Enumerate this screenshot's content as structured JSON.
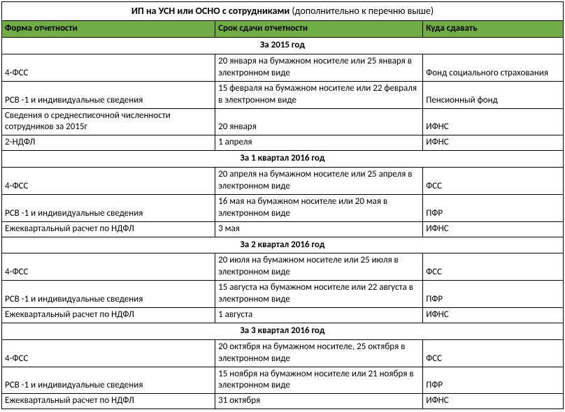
{
  "title_main": "ИП на УСН или ОСНО с сотрудниками",
  "title_sub": " (дополнительно к перечню выше)",
  "header_bg": "#70ad47",
  "headers": {
    "col1": "Форма отчетности",
    "col2": "Срок сдачи отчетности",
    "col3": "Куда сдавать"
  },
  "sections": [
    {
      "label": "За 2015 год",
      "rows": [
        {
          "c1": "4-ФСС",
          "c2": "20 января на бумажном носителе или 25 января в электронном виде",
          "c3": "Фонд социального страхования"
        },
        {
          "c1": " РСВ -1 и индивидуальные сведения",
          "c2": "15 февраля на бумажном носителе или 22 февраля в электронном виде",
          "c3": "Пенсионный фонд"
        },
        {
          "c1": "Сведения о среднесписочной численности сотрудников за 2015г",
          "c2": "20 января",
          "c3": "ИФНС"
        },
        {
          "c1": "2-НДФЛ",
          "c2": "1 апреля",
          "c3": "ИФНС"
        }
      ]
    },
    {
      "label": "За 1 квартал 2016 год",
      "rows": [
        {
          "c1": "4-ФСС",
          "c2": "20 апреля на бумажном носителе или 25 апреля в электронном виде",
          "c3": "ФСС"
        },
        {
          "c1": " РСВ -1 и индивидуальные сведения",
          "c2": "16 мая на бумажном носителе или 20 мая в электронном виде",
          "c3": "ПФР"
        },
        {
          "c1": "Ежеквартальный расчет по НДФЛ",
          "c2": "3 мая",
          "c3": "ИФНС"
        }
      ]
    },
    {
      "label": "За 2 квартал 2016 год",
      "rows": [
        {
          "c1": "4-ФСС",
          "c2": "20 июля на бумажном носителе или 25 июля в электронном виде",
          "c3": "ФСС"
        },
        {
          "c1": " РСВ -1 и индивидуальные сведения",
          "c2": "15 августа на бумажном носителе или 22 августа в электронном виде",
          "c3": "ПФР"
        },
        {
          "c1": "Ежеквартальный расчет по НДФЛ",
          "c2": "1 августа",
          "c3": "ИФНС"
        }
      ]
    },
    {
      "label": "За 3 квартал 2016 год",
      "rows": [
        {
          "c1": "4-ФСС",
          "c2": "20 октября на бумажном носителе, 25 октября в электронном виде",
          "c3": "ФСС"
        },
        {
          "c1": " РСВ -1 и индивидуальные сведения",
          "c2": "15 ноября на бумажном носителе или 21 ноября в электронном виде",
          "c3": "ПФР"
        },
        {
          "c1": "Ежеквартальный расчет по НДФЛ",
          "c2": "31 октября",
          "c3": "ИФНС"
        }
      ]
    }
  ]
}
